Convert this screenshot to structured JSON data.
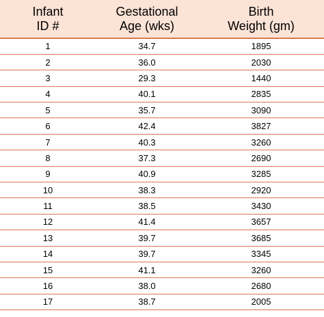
{
  "table": {
    "headers": [
      {
        "line1": "Infant",
        "line2": "ID #"
      },
      {
        "line1": "Gestational",
        "line2": "Age (wks)"
      },
      {
        "line1": "Birth",
        "line2": "Weight (gm)"
      }
    ],
    "rows": [
      {
        "id": "1",
        "age": "34.7",
        "weight": "1895"
      },
      {
        "id": "2",
        "age": "36.0",
        "weight": "2030"
      },
      {
        "id": "3",
        "age": "29.3",
        "weight": "1440"
      },
      {
        "id": "4",
        "age": "40.1",
        "weight": "2835"
      },
      {
        "id": "5",
        "age": "35.7",
        "weight": "3090"
      },
      {
        "id": "6",
        "age": "42.4",
        "weight": "3827"
      },
      {
        "id": "7",
        "age": "40.3",
        "weight": "3260"
      },
      {
        "id": "8",
        "age": "37.3",
        "weight": "2690"
      },
      {
        "id": "9",
        "age": "40.9",
        "weight": "3285"
      },
      {
        "id": "10",
        "age": "38.3",
        "weight": "2920"
      },
      {
        "id": "11",
        "age": "38.5",
        "weight": "3430"
      },
      {
        "id": "12",
        "age": "41.4",
        "weight": "3657"
      },
      {
        "id": "13",
        "age": "39.7",
        "weight": "3685"
      },
      {
        "id": "14",
        "age": "39.7",
        "weight": "3345"
      },
      {
        "id": "15",
        "age": "41.1",
        "weight": "3260"
      },
      {
        "id": "16",
        "age": "38.0",
        "weight": "2680"
      },
      {
        "id": "17",
        "age": "38.7",
        "weight": "2005"
      }
    ]
  },
  "colors": {
    "header_background": "#fbe3d6",
    "rule_color": "#d9774b"
  }
}
